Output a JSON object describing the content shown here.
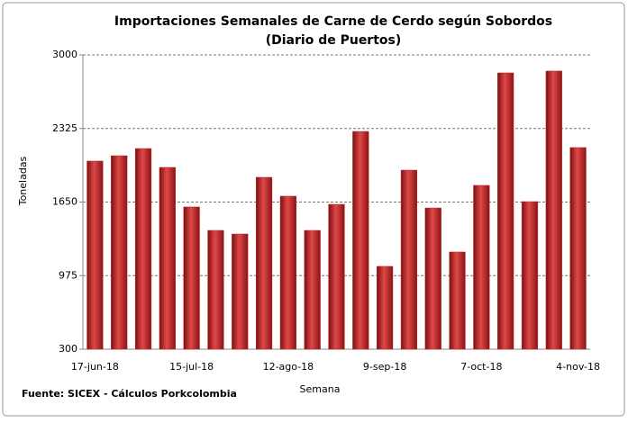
{
  "chart_data": {
    "type": "bar",
    "title": "Importaciones Semanales de Carne de Cerdo según Sobordos",
    "subtitle": "(Diario de Puertos)",
    "x_label": "Semana",
    "y_label": "Toneladas",
    "source": "Fuente: SICEX - Cálculos Porkcolombia",
    "categories": [
      "17-jun-18",
      null,
      null,
      null,
      "15-jul-18",
      null,
      null,
      null,
      "12-ago-18",
      null,
      null,
      null,
      "9-sep-18",
      null,
      null,
      null,
      "7-oct-18",
      null,
      null,
      null,
      "4-nov-18"
    ],
    "values": [
      2026,
      2075,
      2141,
      1968,
      1605,
      1390,
      1357,
      1877,
      1704,
      1390,
      1629,
      2298,
      1060,
      1943,
      1596,
      1192,
      1803,
      2835,
      1654,
      2852,
      2150
    ],
    "color": "#c0282a",
    "ylim": [
      300,
      3000
    ],
    "yticks": [
      300,
      975,
      1650,
      2325,
      3000
    ],
    "grid": true
  }
}
